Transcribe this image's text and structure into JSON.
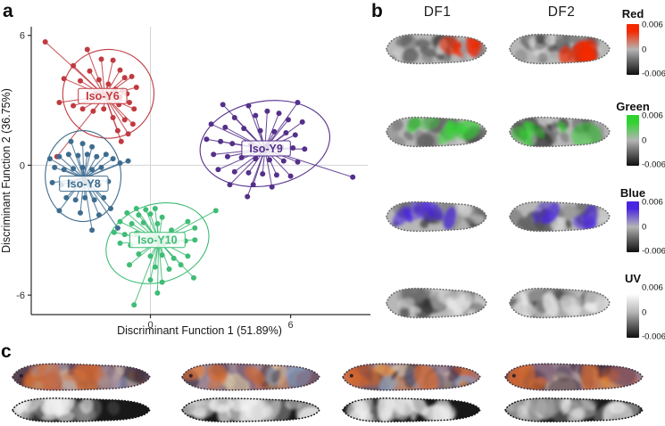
{
  "panels": {
    "a": {
      "label": "a"
    },
    "b": {
      "label": "b"
    },
    "c": {
      "label": "c"
    }
  },
  "chart_data": {
    "type": "scatter",
    "title": "",
    "xlabel": "Discriminant Function 1 (51.89%)",
    "ylabel": "Discriminant Function 2 (36.75%)",
    "xlim": [
      -5.1,
      9.3
    ],
    "ylim": [
      -6.9,
      6.4
    ],
    "xticks": [
      0,
      6
    ],
    "yticks": [
      -6,
      0,
      6
    ],
    "grid": "zero-lines-only",
    "legend": "in-plot cluster labels",
    "groups": [
      {
        "name": "Iso-Y6",
        "color": "#c03a40",
        "centroid": [
          -1.95,
          3.2
        ],
        "label_pos": [
          -2.05,
          3.2
        ],
        "ellipse": {
          "cx": -1.8,
          "cy": 3.3,
          "rx": 1.95,
          "ry": 2.05,
          "rot": -5
        },
        "points": [
          [
            -4.5,
            5.7
          ],
          [
            -2.7,
            5.35
          ],
          [
            -3.3,
            4.6
          ],
          [
            -2.1,
            4.9
          ],
          [
            -1.6,
            4.85
          ],
          [
            -1.3,
            4.4
          ],
          [
            -2.6,
            4.35
          ],
          [
            -3.7,
            4.0
          ],
          [
            -3.0,
            3.9
          ],
          [
            -2.2,
            3.95
          ],
          [
            -1.8,
            3.75
          ],
          [
            -1.1,
            4.05
          ],
          [
            -0.8,
            4.1
          ],
          [
            -1.5,
            3.5
          ],
          [
            -1.2,
            3.45
          ],
          [
            -1.0,
            3.3
          ],
          [
            -1.3,
            3.15
          ],
          [
            -0.6,
            3.6
          ],
          [
            -3.9,
            2.9
          ],
          [
            -3.3,
            2.75
          ],
          [
            -2.9,
            2.6
          ],
          [
            -2.45,
            2.5
          ],
          [
            -2.0,
            2.6
          ],
          [
            -1.35,
            2.8
          ],
          [
            -0.9,
            2.9
          ],
          [
            -0.7,
            2.6
          ],
          [
            -1.6,
            2.2
          ],
          [
            -1.1,
            2.1
          ],
          [
            -0.75,
            1.9
          ],
          [
            -1.4,
            1.6
          ],
          [
            -0.95,
            1.45
          ],
          [
            -1.25,
            1.1
          ],
          [
            -4.0,
            0.4
          ],
          [
            -2.35,
            3.3
          ]
        ]
      },
      {
        "name": "Iso-Y8",
        "color": "#3e6c8f",
        "centroid": [
          -2.85,
          -0.6
        ],
        "label_pos": [
          -2.85,
          -0.85
        ],
        "ellipse": {
          "cx": -2.88,
          "cy": -0.5,
          "rx": 1.62,
          "ry": 2.1,
          "rot": 0
        },
        "points": [
          [
            -3.4,
            1.1
          ],
          [
            -2.9,
            1.0
          ],
          [
            -2.5,
            0.85
          ],
          [
            -4.3,
            0.3
          ],
          [
            -3.9,
            0.4
          ],
          [
            -3.5,
            0.5
          ],
          [
            -3.1,
            0.45
          ],
          [
            -2.7,
            0.5
          ],
          [
            -2.3,
            0.4
          ],
          [
            -1.9,
            0.5
          ],
          [
            -1.6,
            0.3
          ],
          [
            -4.1,
            -0.1
          ],
          [
            -3.7,
            -0.2
          ],
          [
            -3.3,
            -0.15
          ],
          [
            -2.9,
            -0.1
          ],
          [
            -2.5,
            -0.2
          ],
          [
            -2.1,
            -0.1
          ],
          [
            -1.3,
            0.1
          ],
          [
            -0.95,
            0.2
          ],
          [
            -4.2,
            -0.8
          ],
          [
            -3.8,
            -0.9
          ],
          [
            -3.4,
            -0.8
          ],
          [
            -3.0,
            -0.9
          ],
          [
            -2.6,
            -0.85
          ],
          [
            -2.2,
            -0.9
          ],
          [
            -1.8,
            -0.75
          ],
          [
            -3.6,
            -1.5
          ],
          [
            -3.2,
            -1.6
          ],
          [
            -2.8,
            -1.5
          ],
          [
            -2.4,
            -1.6
          ],
          [
            -2.0,
            -1.5
          ],
          [
            -3.9,
            -2.1
          ],
          [
            -3.0,
            -2.2
          ],
          [
            -2.2,
            -2.3
          ],
          [
            -1.7,
            -2.0
          ],
          [
            -2.5,
            -3.0
          ],
          [
            -1.4,
            -2.9
          ]
        ]
      },
      {
        "name": "Iso-Y9",
        "color": "#54308a",
        "centroid": [
          4.9,
          0.75
        ],
        "label_pos": [
          4.95,
          0.78
        ],
        "ellipse": {
          "cx": 4.9,
          "cy": 1.0,
          "rx": 2.8,
          "ry": 1.95,
          "rot": -10
        },
        "points": [
          [
            3.1,
            2.8
          ],
          [
            4.2,
            2.75
          ],
          [
            6.3,
            2.9
          ],
          [
            5.0,
            2.5
          ],
          [
            5.5,
            2.4
          ],
          [
            4.5,
            2.3
          ],
          [
            3.6,
            2.2
          ],
          [
            5.9,
            2.1
          ],
          [
            6.5,
            2.0
          ],
          [
            2.6,
            1.9
          ],
          [
            3.2,
            1.75
          ],
          [
            4.0,
            1.7
          ],
          [
            4.7,
            1.6
          ],
          [
            5.3,
            1.55
          ],
          [
            5.8,
            1.5
          ],
          [
            6.2,
            1.4
          ],
          [
            2.4,
            1.2
          ],
          [
            3.0,
            1.1
          ],
          [
            3.5,
            1.0
          ],
          [
            4.3,
            0.95
          ],
          [
            5.0,
            0.9
          ],
          [
            5.6,
            0.85
          ],
          [
            6.1,
            0.8
          ],
          [
            6.6,
            0.75
          ],
          [
            2.7,
            0.5
          ],
          [
            3.3,
            0.4
          ],
          [
            3.9,
            0.35
          ],
          [
            4.5,
            0.3
          ],
          [
            5.1,
            0.25
          ],
          [
            5.7,
            0.2
          ],
          [
            6.3,
            0.15
          ],
          [
            2.9,
            -0.2
          ],
          [
            3.6,
            -0.3
          ],
          [
            4.2,
            -0.35
          ],
          [
            4.8,
            -0.4
          ],
          [
            5.4,
            -0.45
          ],
          [
            6.0,
            -0.5
          ],
          [
            4.4,
            -0.9
          ],
          [
            5.2,
            -1.0
          ],
          [
            3.4,
            -0.9
          ],
          [
            4.15,
            -1.45
          ],
          [
            8.66,
            -0.55
          ]
        ]
      },
      {
        "name": "Iso-Y10",
        "color": "#3fbc75",
        "centroid": [
          0.35,
          -3.5
        ],
        "label_pos": [
          0.3,
          -3.45
        ],
        "ellipse": {
          "cx": 0.3,
          "cy": -3.6,
          "rx": 2.25,
          "ry": 1.8,
          "rot": -18
        },
        "points": [
          [
            -0.6,
            -2.0
          ],
          [
            -0.2,
            -2.05
          ],
          [
            0.2,
            -2.0
          ],
          [
            -1.0,
            -2.2
          ],
          [
            -0.5,
            -2.3
          ],
          [
            0.0,
            -2.25
          ],
          [
            0.5,
            -2.4
          ],
          [
            2.8,
            -2.1
          ],
          [
            -1.3,
            -2.6
          ],
          [
            -0.8,
            -2.7
          ],
          [
            -0.3,
            -2.65
          ],
          [
            0.3,
            -2.7
          ],
          [
            1.6,
            -2.6
          ],
          [
            -1.55,
            -3.1
          ],
          [
            -1.1,
            -3.2
          ],
          [
            -0.6,
            -3.15
          ],
          [
            0.9,
            -3.0
          ],
          [
            1.9,
            -2.9
          ],
          [
            -1.3,
            -3.6
          ],
          [
            -0.85,
            -3.7
          ],
          [
            0.6,
            -3.6
          ],
          [
            1.1,
            -3.55
          ],
          [
            1.5,
            -3.5
          ],
          [
            1.9,
            -3.45
          ],
          [
            -0.5,
            -4.1
          ],
          [
            0.0,
            -4.2
          ],
          [
            0.5,
            -4.15
          ],
          [
            1.0,
            -4.3
          ],
          [
            1.6,
            -4.2
          ],
          [
            -0.9,
            -4.6
          ],
          [
            0.2,
            -4.7
          ],
          [
            0.8,
            -4.8
          ],
          [
            1.3,
            -4.6
          ],
          [
            0.0,
            -5.3
          ],
          [
            0.5,
            -5.4
          ],
          [
            1.85,
            -5.2
          ],
          [
            0.3,
            -5.9
          ],
          [
            -0.7,
            -6.45
          ]
        ]
      }
    ]
  },
  "panel_b": {
    "columns": [
      "DF1",
      "DF2"
    ],
    "rows": [
      {
        "channel": "Red",
        "color": "#f52900",
        "ticks": [
          "0.006",
          "0",
          "-0.006"
        ]
      },
      {
        "channel": "Green",
        "color": "#2fd32f",
        "ticks": [
          "0.006",
          "0",
          "-0.006"
        ]
      },
      {
        "channel": "Blue",
        "color": "#4a25e0",
        "ticks": [
          "0.006",
          "0",
          "-0.006"
        ]
      },
      {
        "channel": "UV",
        "color": "#ffffff",
        "ticks": [
          "0.006",
          "0",
          "-0.006"
        ]
      }
    ]
  },
  "panel_c": {
    "specimen_count": 4,
    "row_types": [
      "visible-color",
      "uv"
    ]
  }
}
